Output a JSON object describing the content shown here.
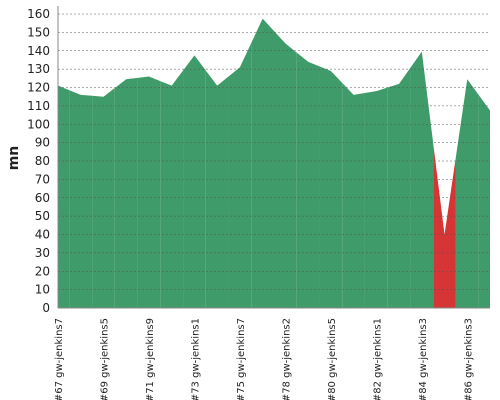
{
  "chart_data": {
    "type": "area",
    "y_label": "mn",
    "categories": [
      "#67 gw-jenkins7",
      null,
      "#69 gw-jenkins5",
      null,
      "#71 gw-jenkins9",
      null,
      "#73 gw-jenkins1",
      null,
      "#75 gw-jenkins7",
      null,
      "#78 gw-jenkins2",
      null,
      "#80 gw-jenkins5",
      null,
      "#82 gw-jenkins1",
      null,
      "#84 gw-jenkins3",
      null,
      "#86 gw-jenkins3",
      null
    ],
    "values": [
      121,
      116,
      115,
      124.5,
      126,
      121,
      137.5,
      121,
      131,
      157.5,
      144,
      134,
      129,
      116,
      118,
      122,
      139.5,
      40,
      124.5,
      107.5
    ],
    "colors": [
      "#3f9b69",
      "#3f9b69",
      "#3f9b69",
      "#3f9b69",
      "#3f9b69",
      "#3f9b69",
      "#3f9b69",
      "#3f9b69",
      "#3f9b69",
      "#3f9b69",
      "#3f9b69",
      "#3f9b69",
      "#3f9b69",
      "#3f9b69",
      "#3f9b69",
      "#3f9b69",
      "#3f9b69",
      "#d63535",
      "#3f9b69",
      "#3f9b69"
    ],
    "ylim": [
      0,
      160
    ],
    "yticks": [
      0,
      10,
      20,
      30,
      40,
      50,
      60,
      70,
      80,
      90,
      100,
      110,
      120,
      130,
      140,
      150,
      160
    ],
    "grid": true
  }
}
